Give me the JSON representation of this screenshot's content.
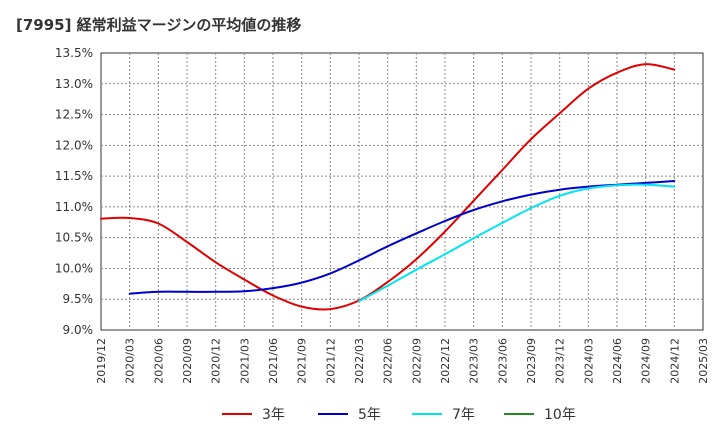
{
  "chart_data": {
    "type": "line",
    "title": "[7995]  経常利益マージンの平均値の推移",
    "xlabel": "",
    "ylabel": "",
    "x_ticks": [
      "2019/12",
      "2020/03",
      "2020/06",
      "2020/09",
      "2020/12",
      "2021/03",
      "2021/06",
      "2021/09",
      "2021/12",
      "2022/03",
      "2022/06",
      "2022/09",
      "2022/12",
      "2023/03",
      "2023/06",
      "2023/09",
      "2023/12",
      "2024/03",
      "2024/06",
      "2024/09",
      "2024/12",
      "2025/03"
    ],
    "y_ticks": [
      "9.0%",
      "9.5%",
      "10.0%",
      "10.5%",
      "11.0%",
      "11.5%",
      "12.0%",
      "12.5%",
      "13.0%",
      "13.5%"
    ],
    "ylim": [
      9.0,
      13.5
    ],
    "grid": true,
    "legend_position": "bottom",
    "series": [
      {
        "name": "3年",
        "color": "#e00000",
        "x": [
          "2019/12",
          "2020/03",
          "2020/06",
          "2020/09",
          "2020/12",
          "2021/03",
          "2021/06",
          "2021/09",
          "2021/12",
          "2022/03",
          "2022/06",
          "2022/09",
          "2022/12",
          "2023/03",
          "2023/06",
          "2023/09",
          "2023/12",
          "2024/03",
          "2024/06",
          "2024/09",
          "2024/12"
        ],
        "values": [
          10.81,
          10.82,
          10.73,
          10.43,
          10.1,
          9.82,
          9.56,
          9.38,
          9.34,
          9.48,
          9.78,
          10.15,
          10.6,
          11.1,
          11.6,
          12.1,
          12.52,
          12.92,
          13.18,
          13.32,
          13.23
        ]
      },
      {
        "name": "5年",
        "color": "#0000cc",
        "x": [
          "2020/03",
          "2020/06",
          "2020/09",
          "2020/12",
          "2021/03",
          "2021/06",
          "2021/09",
          "2021/12",
          "2022/03",
          "2022/06",
          "2022/09",
          "2022/12",
          "2023/03",
          "2023/06",
          "2023/09",
          "2023/12",
          "2024/03",
          "2024/06",
          "2024/09",
          "2024/12"
        ],
        "values": [
          9.59,
          9.62,
          9.62,
          9.62,
          9.63,
          9.68,
          9.77,
          9.92,
          10.13,
          10.36,
          10.57,
          10.77,
          10.95,
          11.09,
          11.2,
          11.28,
          11.33,
          11.36,
          11.39,
          11.42
        ]
      },
      {
        "name": "7年",
        "color": "#00e5ee",
        "x": [
          "2022/03",
          "2022/06",
          "2022/09",
          "2022/12",
          "2023/03",
          "2023/06",
          "2023/09",
          "2023/12",
          "2024/03",
          "2024/06",
          "2024/09",
          "2024/12"
        ],
        "values": [
          9.47,
          9.72,
          9.98,
          10.23,
          10.49,
          10.74,
          10.98,
          11.18,
          11.3,
          11.35,
          11.36,
          11.33
        ]
      },
      {
        "name": "10年",
        "color": "#228b22",
        "x": [],
        "values": []
      }
    ]
  }
}
